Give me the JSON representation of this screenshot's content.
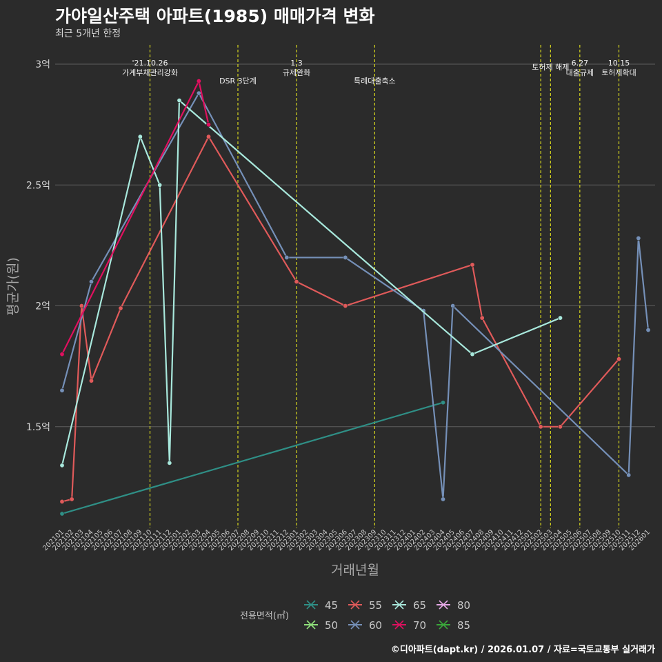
{
  "title": "가야일산주택 아파트(1985) 매매가격 변화",
  "subtitle": "최근 5개년 한정",
  "caption": "©디아파트(dapt.kr) / 2026.01.07 / 자료=국토교통부 실거래가",
  "chart_data": {
    "type": "line",
    "xlabel": "거래년월",
    "ylabel": "평균가(원)",
    "ylim": [
      1.08,
      3.08
    ],
    "yticks": [
      {
        "v": 1.5,
        "label": "1.5억"
      },
      {
        "v": 2.0,
        "label": "2억"
      },
      {
        "v": 2.5,
        "label": "2.5억"
      },
      {
        "v": 3.0,
        "label": "3억"
      }
    ],
    "categories": [
      "202101",
      "202102",
      "202103",
      "202104",
      "202105",
      "202106",
      "202107",
      "202108",
      "202109",
      "202110",
      "202111",
      "202112",
      "202201",
      "202202",
      "202203",
      "202204",
      "202205",
      "202206",
      "202207",
      "202208",
      "202209",
      "202210",
      "202211",
      "202212",
      "202301",
      "202302",
      "202303",
      "202304",
      "202305",
      "202306",
      "202307",
      "202308",
      "202309",
      "202310",
      "202311",
      "202312",
      "202401",
      "202402",
      "202403",
      "202404",
      "202405",
      "202406",
      "202407",
      "202408",
      "202409",
      "202410",
      "202411",
      "202412",
      "202501",
      "202502",
      "202503",
      "202504",
      "202505",
      "202506",
      "202507",
      "202508",
      "202509",
      "202510",
      "202511",
      "202512",
      "202601"
    ],
    "events": [
      {
        "at": "202110",
        "lines": [
          "'21.10.26",
          "가계부채관리강화"
        ],
        "level": 1
      },
      {
        "at": "202207",
        "lines": [
          "DSR 3단계"
        ],
        "level": 2
      },
      {
        "at": "202301",
        "lines": [
          "1.3",
          "규제완화"
        ],
        "level": 1
      },
      {
        "at": "202309",
        "lines": [
          "특례대출축소"
        ],
        "level": 2
      },
      {
        "at": "202502",
        "lines": [],
        "level": 1
      },
      {
        "at": "202503",
        "lines": [
          "토허제 해제"
        ],
        "level": 0
      },
      {
        "at": "202506",
        "lines": [
          "6.27",
          "대출규제"
        ],
        "level": 1
      },
      {
        "at": "202510",
        "lines": [
          "10.15",
          "토허제확대"
        ],
        "level": 1
      }
    ],
    "legend_title": "전용면적(㎡)",
    "legend_rows": [
      [
        "45",
        "55",
        "65",
        "80"
      ],
      [
        "50",
        "60",
        "70",
        "85"
      ]
    ],
    "series": [
      {
        "name": "45",
        "color": "#2f8f86",
        "points": [
          [
            "202101",
            1.14
          ],
          [
            "202404",
            1.6
          ]
        ]
      },
      {
        "name": "50",
        "color": "#8fe07a",
        "points": []
      },
      {
        "name": "55",
        "color": "#e05a5a",
        "points": [
          [
            "202101",
            1.19
          ],
          [
            "202102",
            1.2
          ],
          [
            "202103",
            2.0
          ],
          [
            "202104",
            1.69
          ],
          [
            "202107",
            1.99
          ],
          [
            "202204",
            2.7
          ],
          [
            "202301",
            2.1
          ],
          [
            "202306",
            2.0
          ],
          [
            "202407",
            2.17
          ],
          [
            "202408",
            1.95
          ],
          [
            "202502",
            1.5
          ],
          [
            "202504",
            1.5
          ],
          [
            "202510",
            1.78
          ]
        ]
      },
      {
        "name": "60",
        "color": "#7590b8",
        "points": [
          [
            "202101",
            1.65
          ],
          [
            "202104",
            2.1
          ],
          [
            "202203",
            2.88
          ],
          [
            "202212",
            2.2
          ],
          [
            "202306",
            2.2
          ],
          [
            "202402",
            1.98
          ],
          [
            "202404",
            1.2
          ],
          [
            "202405",
            2.0
          ],
          [
            "202511",
            1.3
          ],
          [
            "202512",
            2.28
          ],
          [
            "202601",
            1.9
          ]
        ]
      },
      {
        "name": "65",
        "color": "#a8e8dc",
        "points": [
          [
            "202101",
            1.34
          ],
          [
            "202109",
            2.7
          ],
          [
            "202111",
            2.5
          ],
          [
            "202112",
            1.35
          ],
          [
            "202201",
            2.85
          ],
          [
            "202407",
            1.8
          ],
          [
            "202504",
            1.95
          ]
        ]
      },
      {
        "name": "70",
        "color": "#e0105f",
        "points": [
          [
            "202101",
            1.8
          ],
          [
            "202203",
            2.93
          ],
          [
            "202204",
            2.75
          ]
        ]
      },
      {
        "name": "80",
        "color": "#e6a8e6",
        "points": []
      },
      {
        "name": "85",
        "color": "#3aa83a",
        "points": []
      }
    ]
  }
}
